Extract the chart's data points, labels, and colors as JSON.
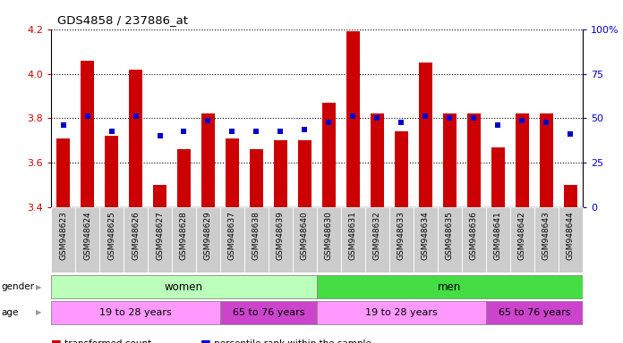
{
  "title": "GDS4858 / 237886_at",
  "samples": [
    "GSM948623",
    "GSM948624",
    "GSM948625",
    "GSM948626",
    "GSM948627",
    "GSM948628",
    "GSM948629",
    "GSM948637",
    "GSM948638",
    "GSM948639",
    "GSM948640",
    "GSM948630",
    "GSM948631",
    "GSM948632",
    "GSM948633",
    "GSM948634",
    "GSM948635",
    "GSM948636",
    "GSM948641",
    "GSM948642",
    "GSM948643",
    "GSM948644"
  ],
  "bar_values": [
    3.71,
    4.06,
    3.72,
    4.02,
    3.5,
    3.66,
    3.82,
    3.71,
    3.66,
    3.7,
    3.7,
    3.87,
    4.19,
    3.82,
    3.74,
    4.05,
    3.82,
    3.82,
    3.67,
    3.82,
    3.82,
    3.5
  ],
  "dot_values": [
    3.77,
    3.81,
    3.74,
    3.81,
    3.72,
    3.74,
    3.79,
    3.74,
    3.74,
    3.74,
    3.75,
    3.78,
    3.81,
    3.8,
    3.78,
    3.81,
    3.8,
    3.8,
    3.77,
    3.79,
    3.78,
    3.73
  ],
  "ylim": [
    3.4,
    4.2
  ],
  "yticks_left": [
    3.4,
    3.6,
    3.8,
    4.0,
    4.2
  ],
  "yticks_right": [
    0,
    25,
    50,
    75,
    100
  ],
  "bar_color": "#cc0000",
  "dot_color": "#0000cc",
  "gender_groups": [
    {
      "label": "women",
      "start": 0,
      "end": 11,
      "color": "#bbffbb"
    },
    {
      "label": "men",
      "start": 11,
      "end": 22,
      "color": "#44dd44"
    }
  ],
  "age_groups": [
    {
      "label": "19 to 28 years",
      "start": 0,
      "end": 7,
      "color": "#ff99ff"
    },
    {
      "label": "65 to 76 years",
      "start": 7,
      "end": 11,
      "color": "#cc44cc"
    },
    {
      "label": "19 to 28 years",
      "start": 11,
      "end": 18,
      "color": "#ff99ff"
    },
    {
      "label": "65 to 76 years",
      "start": 18,
      "end": 22,
      "color": "#cc44cc"
    }
  ],
  "base_value": 3.4,
  "bar_width": 0.55
}
